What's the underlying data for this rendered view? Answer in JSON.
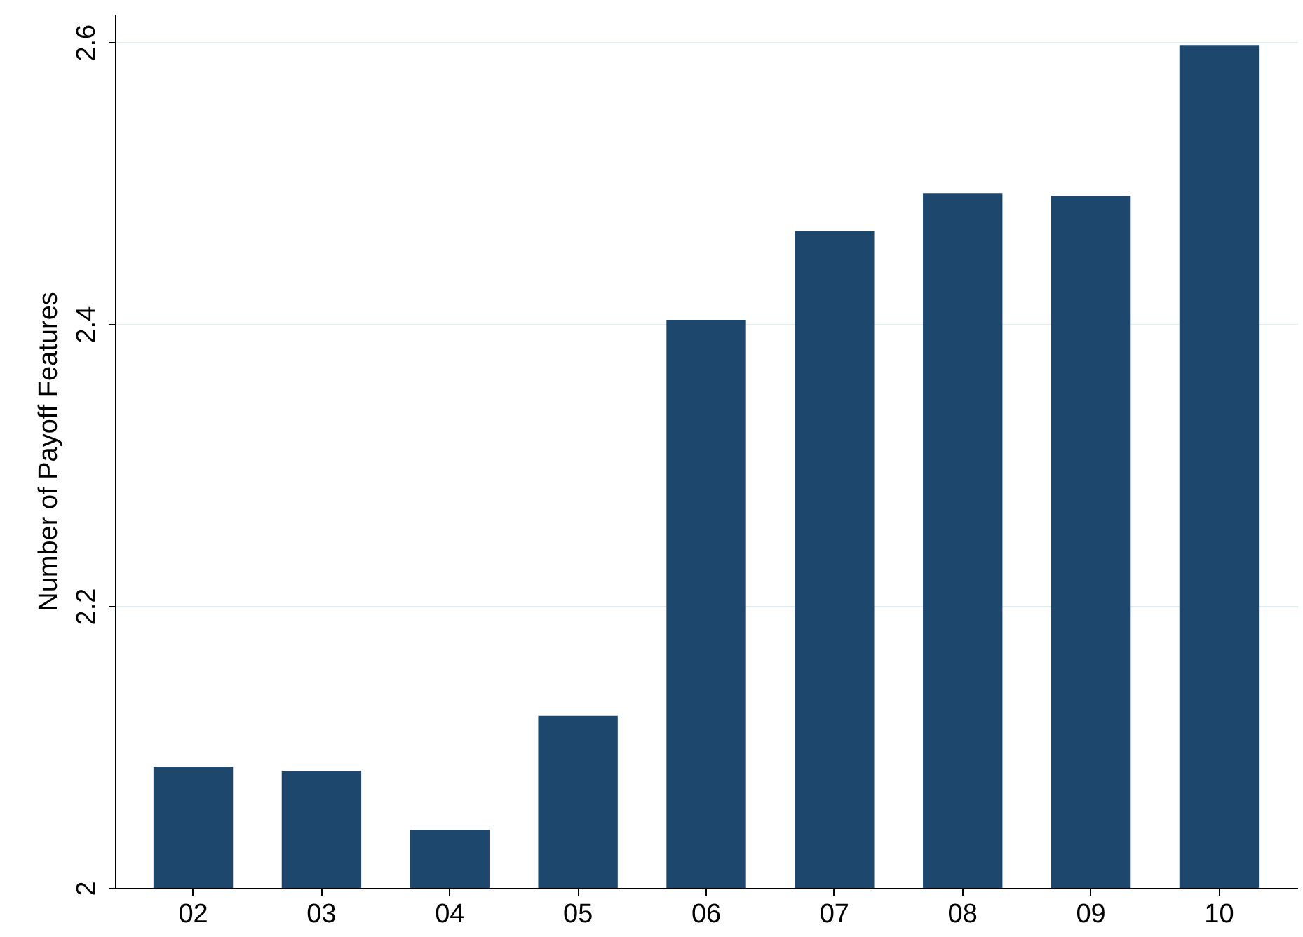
{
  "chart_data": {
    "type": "bar",
    "ylabel": "Number of Payoff Features",
    "categories": [
      "02",
      "03",
      "04",
      "05",
      "06",
      "07",
      "08",
      "09",
      "10"
    ],
    "values": [
      2.086,
      2.083,
      2.041,
      2.122,
      2.403,
      2.466,
      2.493,
      2.491,
      2.598
    ],
    "color": "#1d476d",
    "ylim": [
      2,
      2.62
    ],
    "yticks": [
      2,
      2.2,
      2.4,
      2.6
    ],
    "grid": "y"
  }
}
